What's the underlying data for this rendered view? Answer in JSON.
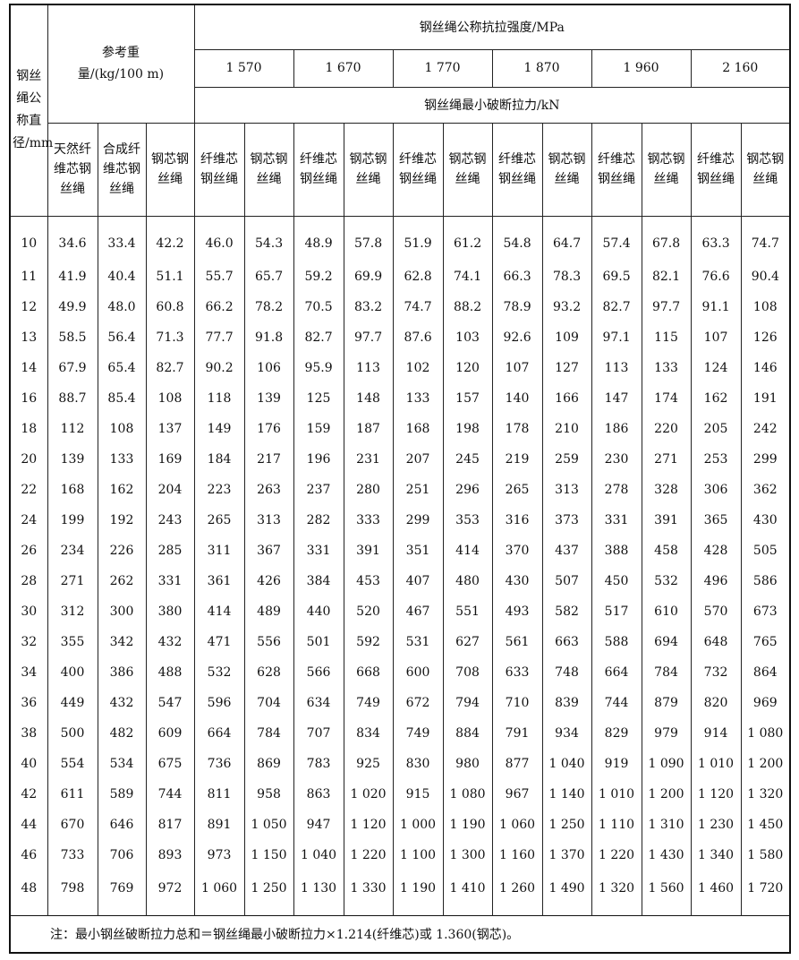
{
  "header": {
    "diameter": "钢丝绳公称直径/mm",
    "weight_group": "参考重量/(kg/100 m)",
    "strength_group": "钢丝绳公称抗拉强度/MPa",
    "strengths": [
      "1 570",
      "1 670",
      "1 770",
      "1 870",
      "1 960",
      "2 160"
    ],
    "min_break": "钢丝绳最小破断拉力/kN",
    "weight_cols": [
      "天然纤维芯钢丝绳",
      "合成纤维芯钢丝绳",
      "钢芯钢丝绳"
    ],
    "core_cols": [
      "纤维芯钢丝绳",
      "钢芯钢丝绳"
    ]
  },
  "rows": [
    [
      "10",
      "34.6",
      "33.4",
      "42.2",
      "46.0",
      "54.3",
      "48.9",
      "57.8",
      "51.9",
      "61.2",
      "54.8",
      "64.7",
      "57.4",
      "67.8",
      "63.3",
      "74.7"
    ],
    [
      "11",
      "41.9",
      "40.4",
      "51.1",
      "55.7",
      "65.7",
      "59.2",
      "69.9",
      "62.8",
      "74.1",
      "66.3",
      "78.3",
      "69.5",
      "82.1",
      "76.6",
      "90.4"
    ],
    [
      "12",
      "49.9",
      "48.0",
      "60.8",
      "66.2",
      "78.2",
      "70.5",
      "83.2",
      "74.7",
      "88.2",
      "78.9",
      "93.2",
      "82.7",
      "97.7",
      "91.1",
      "108"
    ],
    [
      "13",
      "58.5",
      "56.4",
      "71.3",
      "77.7",
      "91.8",
      "82.7",
      "97.7",
      "87.6",
      "103",
      "92.6",
      "109",
      "97.1",
      "115",
      "107",
      "126"
    ],
    [
      "14",
      "67.9",
      "65.4",
      "82.7",
      "90.2",
      "106",
      "95.9",
      "113",
      "102",
      "120",
      "107",
      "127",
      "113",
      "133",
      "124",
      "146"
    ],
    [
      "16",
      "88.7",
      "85.4",
      "108",
      "118",
      "139",
      "125",
      "148",
      "133",
      "157",
      "140",
      "166",
      "147",
      "174",
      "162",
      "191"
    ],
    [
      "18",
      "112",
      "108",
      "137",
      "149",
      "176",
      "159",
      "187",
      "168",
      "198",
      "178",
      "210",
      "186",
      "220",
      "205",
      "242"
    ],
    [
      "20",
      "139",
      "133",
      "169",
      "184",
      "217",
      "196",
      "231",
      "207",
      "245",
      "219",
      "259",
      "230",
      "271",
      "253",
      "299"
    ],
    [
      "22",
      "168",
      "162",
      "204",
      "223",
      "263",
      "237",
      "280",
      "251",
      "296",
      "265",
      "313",
      "278",
      "328",
      "306",
      "362"
    ],
    [
      "24",
      "199",
      "192",
      "243",
      "265",
      "313",
      "282",
      "333",
      "299",
      "353",
      "316",
      "373",
      "331",
      "391",
      "365",
      "430"
    ],
    [
      "26",
      "234",
      "226",
      "285",
      "311",
      "367",
      "331",
      "391",
      "351",
      "414",
      "370",
      "437",
      "388",
      "458",
      "428",
      "505"
    ],
    [
      "28",
      "271",
      "262",
      "331",
      "361",
      "426",
      "384",
      "453",
      "407",
      "480",
      "430",
      "507",
      "450",
      "532",
      "496",
      "586"
    ],
    [
      "30",
      "312",
      "300",
      "380",
      "414",
      "489",
      "440",
      "520",
      "467",
      "551",
      "493",
      "582",
      "517",
      "610",
      "570",
      "673"
    ],
    [
      "32",
      "355",
      "342",
      "432",
      "471",
      "556",
      "501",
      "592",
      "531",
      "627",
      "561",
      "663",
      "588",
      "694",
      "648",
      "765"
    ],
    [
      "34",
      "400",
      "386",
      "488",
      "532",
      "628",
      "566",
      "668",
      "600",
      "708",
      "633",
      "748",
      "664",
      "784",
      "732",
      "864"
    ],
    [
      "36",
      "449",
      "432",
      "547",
      "596",
      "704",
      "634",
      "749",
      "672",
      "794",
      "710",
      "839",
      "744",
      "879",
      "820",
      "969"
    ],
    [
      "38",
      "500",
      "482",
      "609",
      "664",
      "784",
      "707",
      "834",
      "749",
      "884",
      "791",
      "934",
      "829",
      "979",
      "914",
      "1 080"
    ],
    [
      "40",
      "554",
      "534",
      "675",
      "736",
      "869",
      "783",
      "925",
      "830",
      "980",
      "877",
      "1 040",
      "919",
      "1 090",
      "1 010",
      "1 200"
    ],
    [
      "42",
      "611",
      "589",
      "744",
      "811",
      "958",
      "863",
      "1 020",
      "915",
      "1 080",
      "967",
      "1 140",
      "1 010",
      "1 200",
      "1 120",
      "1 320"
    ],
    [
      "44",
      "670",
      "646",
      "817",
      "891",
      "1 050",
      "947",
      "1 120",
      "1 000",
      "1 190",
      "1 060",
      "1 250",
      "1 110",
      "1 310",
      "1 230",
      "1 450"
    ],
    [
      "46",
      "733",
      "706",
      "893",
      "973",
      "1 150",
      "1 040",
      "1 220",
      "1 100",
      "1 300",
      "1 160",
      "1 370",
      "1 220",
      "1 430",
      "1 340",
      "1 580"
    ],
    [
      "48",
      "798",
      "769",
      "972",
      "1 060",
      "1 250",
      "1 130",
      "1 330",
      "1 190",
      "1 410",
      "1 260",
      "1 490",
      "1 320",
      "1 560",
      "1 460",
      "1 720"
    ]
  ],
  "note": "注：最小钢丝破断拉力总和＝钢丝绳最小破断拉力×1.214(纤维芯)或 1.360(钢芯)。"
}
